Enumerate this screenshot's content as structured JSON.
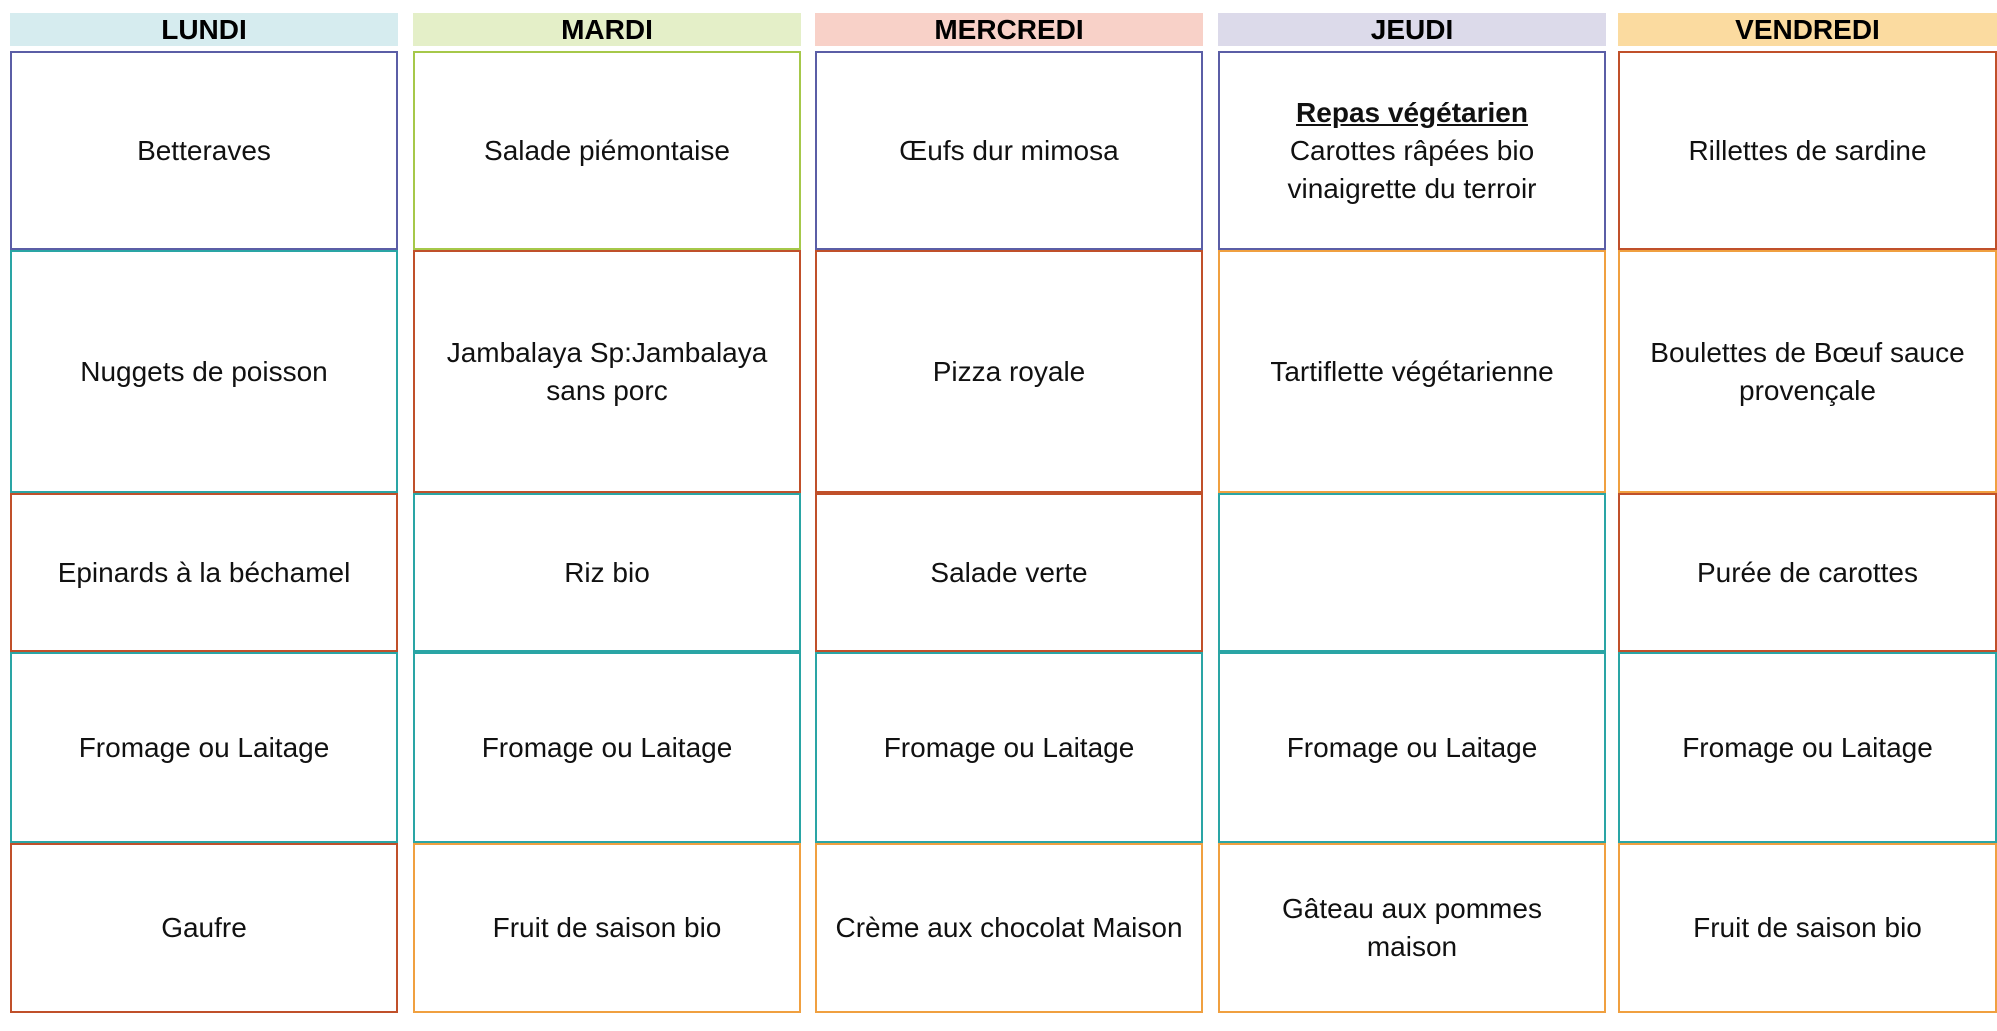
{
  "days": [
    {
      "name": "LUNDI",
      "items": [
        "Betteraves",
        "Nuggets de poisson",
        "Epinards à la béchamel",
        "Fromage ou Laitage",
        "Gaufre"
      ]
    },
    {
      "name": "MARDI",
      "items": [
        "Salade piémontaise",
        "Jambalaya  Sp:Jambalaya sans porc",
        "Riz bio",
        "Fromage ou Laitage",
        "Fruit de saison bio"
      ]
    },
    {
      "name": "MERCREDI",
      "items": [
        "Œufs dur mimosa",
        "Pizza royale",
        "Salade verte",
        "Fromage ou Laitage",
        "Crème aux chocolat Maison"
      ]
    },
    {
      "name": "JEUDI",
      "badge": "Repas végétarien",
      "items": [
        "Carottes râpées bio vinaigrette du terroir",
        "Tartiflette végétarienne",
        "",
        "Fromage ou Laitage",
        "Gâteau aux pommes maison"
      ]
    },
    {
      "name": "VENDREDI",
      "items": [
        "Rillettes de sardine",
        "Boulettes de Bœuf sauce provençale",
        "Purée de carottes",
        "Fromage ou Laitage",
        "Fruit de saison bio"
      ]
    }
  ]
}
